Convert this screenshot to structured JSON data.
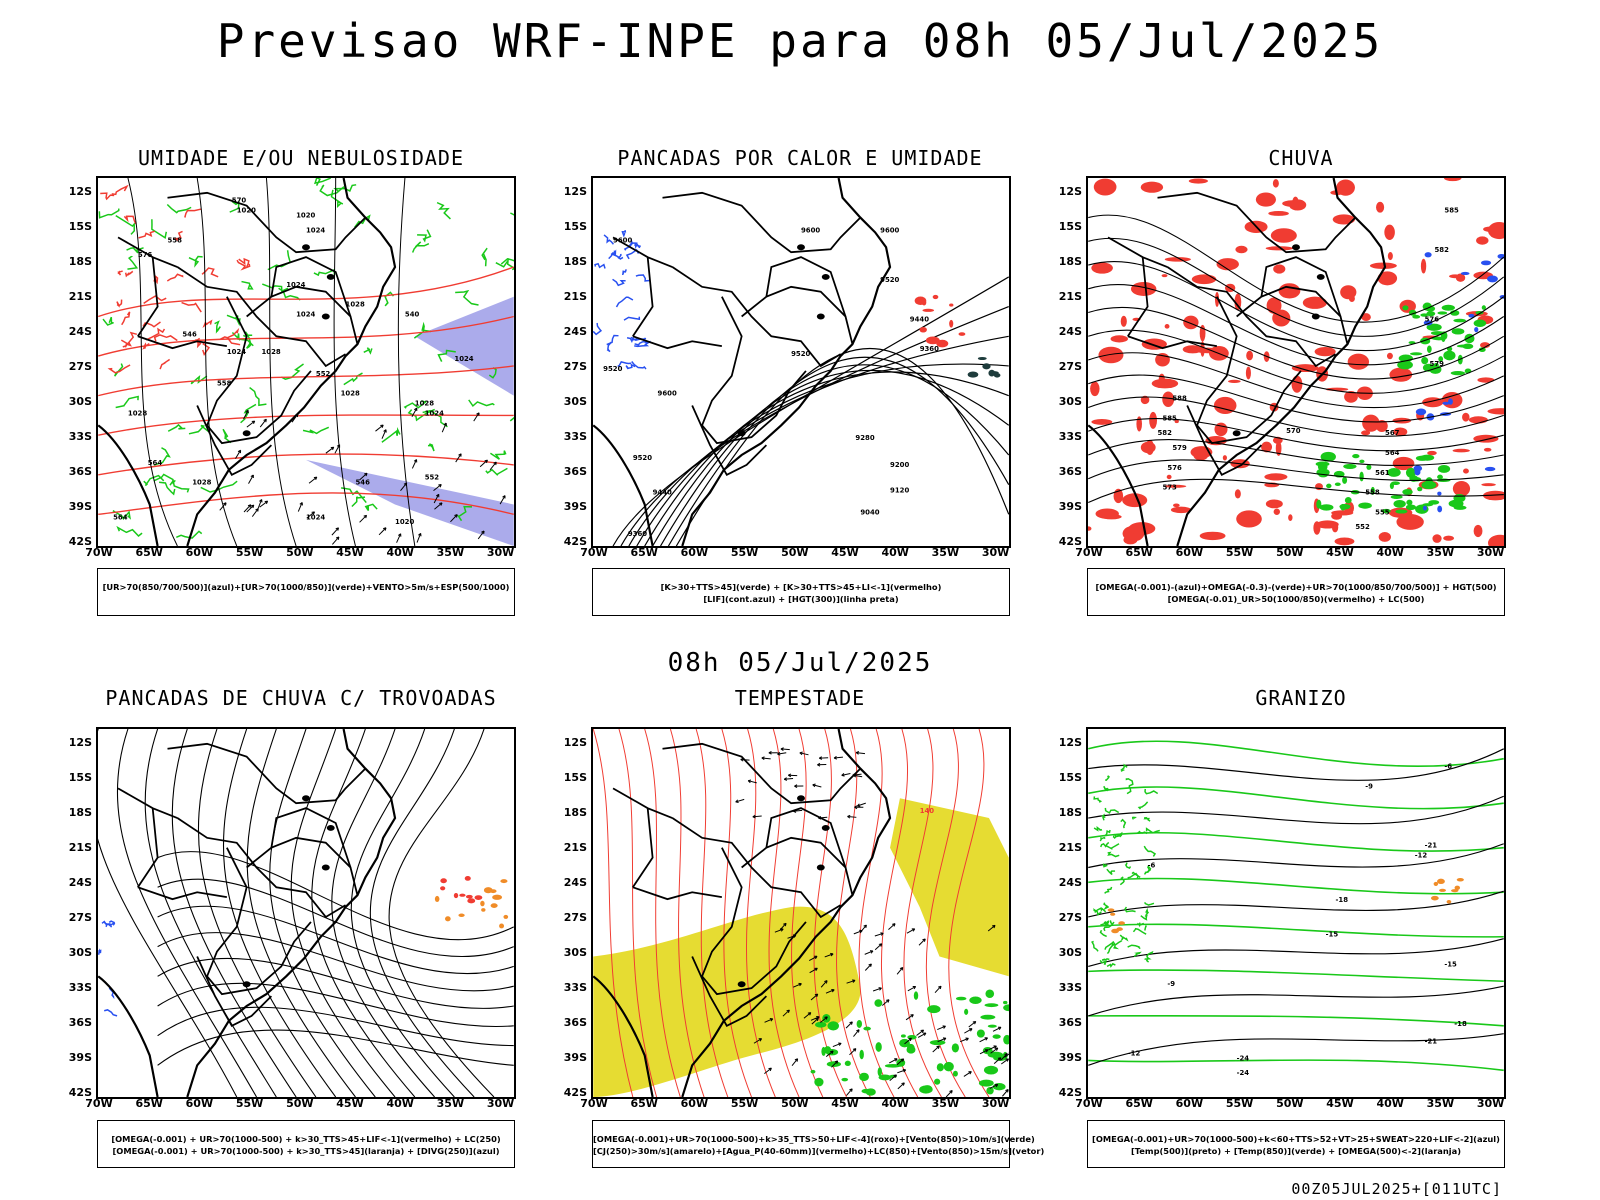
{
  "header": {
    "title": "Previsao WRF-INPE  para 08h 05/Jul/2025"
  },
  "mid_title": "08h 05/Jul/2025",
  "footer": "00Z05JUL2025+[011UTC]",
  "axes": {
    "lat_labels": [
      "12S",
      "15S",
      "18S",
      "21S",
      "24S",
      "27S",
      "30S",
      "33S",
      "36S",
      "39S",
      "42S"
    ],
    "lon_labels": [
      "70W",
      "65W",
      "60W",
      "55W",
      "50W",
      "45W",
      "40W",
      "35W",
      "30W"
    ]
  },
  "colors": {
    "green": "#19c819",
    "red": "#f03c32",
    "blue": "#2850f0",
    "lavender": "#9696e6",
    "yellow": "#e6dc32",
    "orange": "#f08c28",
    "black": "#000000"
  },
  "panels": [
    {
      "title": "UMIDADE E/OU NEBULOSIDADE",
      "legend": [
        "[UR>70(850/700/500)](azul)+[UR>70(1000/850)](verde)+VENTO>5m/s+ESP(500/1000)"
      ],
      "contour_labels": [
        "1020",
        "1020",
        "1024",
        "1024",
        "1024",
        "1024",
        "1028",
        "1028",
        "1028",
        "1024",
        "1028",
        "1028",
        "1024",
        "1020",
        "1024",
        "1028",
        "564",
        "558",
        "564",
        "546",
        "552",
        "540",
        "570",
        "576",
        "552",
        "546",
        "558"
      ]
    },
    {
      "title": "PANCADAS POR CALOR E UMIDADE",
      "legend": [
        "[K>30+TTS>45](verde) + [K>30+TTS>45+LI<-1](vermelho)",
        "[LIF](cont.azul) + [HGT(300)](linha preta)"
      ],
      "contour_labels": [
        "9600",
        "9600",
        "9600",
        "9520",
        "9440",
        "9520",
        "9360",
        "9600",
        "9520",
        "9280",
        "9200",
        "9440",
        "9120",
        "9040",
        "9360",
        "9520"
      ]
    },
    {
      "title": "CHUVA",
      "legend": [
        "[OMEGA(-0.001)-(azul)+OMEGA(-0.3)-(verde)+UR>70(1000/850/700/500)] + HGT(500)",
        "[OMEGA(-0.01)_UR>50(1000/850)(vermelho) + LC(500)"
      ],
      "contour_labels": [
        "588",
        "585",
        "582",
        "579",
        "576",
        "573",
        "570",
        "567",
        "564",
        "561",
        "558",
        "555",
        "552",
        "576",
        "579",
        "582",
        "585"
      ]
    },
    {
      "title": "PANCADAS DE CHUVA C/ TROVOADAS",
      "legend": [
        "[OMEGA(-0.001) + UR>70(1000-500) + k>30_TTS>45+LIF<-1](vermelho) + LC(250)",
        "[OMEGA(-0.001) + UR>70(1000-500) + k>30_TTS>45](laranja) + [DIVG(250)](azul)"
      ]
    },
    {
      "title": "TEMPESTADE",
      "legend": [
        "[OMEGA(-0.001)+UR>70(1000-500)+k>35_TTS>50+LIF<-4](roxo)+[Vento(850)>10m/s](verde)",
        "[CJ(250)>30m/s](amarelo)+[Agua_P(40-60mm)](vermelho)+LC(850)+[Vento(850)>15m/s](vetor)"
      ],
      "contour_labels": [
        "140"
      ]
    },
    {
      "title": "GRANIZO",
      "legend": [
        "[OMEGA(-0.001)+UR>70(1000-500)+k<60+TTS>52+VT>25+SWEAT>220+LIF<-2](azul)",
        "[Temp(500)](preto) + [Temp(850)](verde) + [OMEGA(500)<-2](laranja)"
      ],
      "contour_labels": [
        "-6",
        "-9",
        "-12",
        "-15",
        "-18",
        "-21",
        "-24",
        "-12",
        "-15",
        "-18",
        "-9",
        "-6",
        "-21",
        "-24"
      ]
    }
  ]
}
